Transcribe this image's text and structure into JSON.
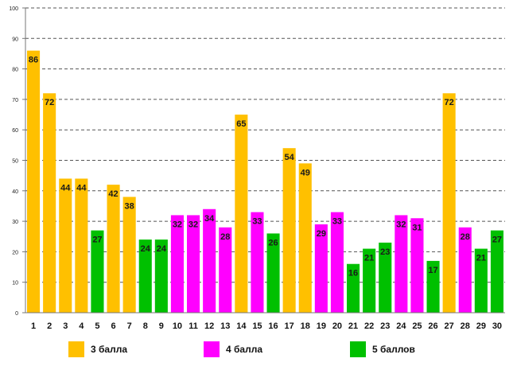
{
  "chart_data": {
    "type": "bar",
    "title": "",
    "xlabel": "",
    "ylabel": "",
    "ylim": [
      0,
      100
    ],
    "yticks": [
      0,
      10,
      20,
      30,
      40,
      50,
      60,
      70,
      80,
      90,
      100
    ],
    "grid": true,
    "categories": [
      "1",
      "2",
      "3",
      "4",
      "5",
      "6",
      "7",
      "8",
      "9",
      "10",
      "11",
      "12",
      "13",
      "14",
      "15",
      "16",
      "17",
      "18",
      "19",
      "20",
      "21",
      "22",
      "23",
      "24",
      "25",
      "26",
      "27",
      "28",
      "29",
      "30"
    ],
    "values": [
      86,
      72,
      44,
      44,
      27,
      42,
      38,
      24,
      24,
      32,
      32,
      34,
      28,
      65,
      33,
      26,
      54,
      49,
      29,
      33,
      16,
      21,
      23,
      32,
      31,
      17,
      72,
      28,
      21,
      27
    ],
    "groups": [
      3,
      3,
      3,
      3,
      5,
      3,
      3,
      5,
      5,
      4,
      4,
      4,
      4,
      3,
      4,
      5,
      3,
      3,
      4,
      4,
      5,
      5,
      5,
      4,
      4,
      5,
      3,
      4,
      5,
      5
    ],
    "legend": [
      {
        "group": 3,
        "label": "3 балла",
        "color": "#FFC000"
      },
      {
        "group": 4,
        "label": "4 балла",
        "color": "#FF00FF"
      },
      {
        "group": 5,
        "label": "5 баллов",
        "color": "#00C000"
      }
    ],
    "legend_position": "bottom"
  }
}
